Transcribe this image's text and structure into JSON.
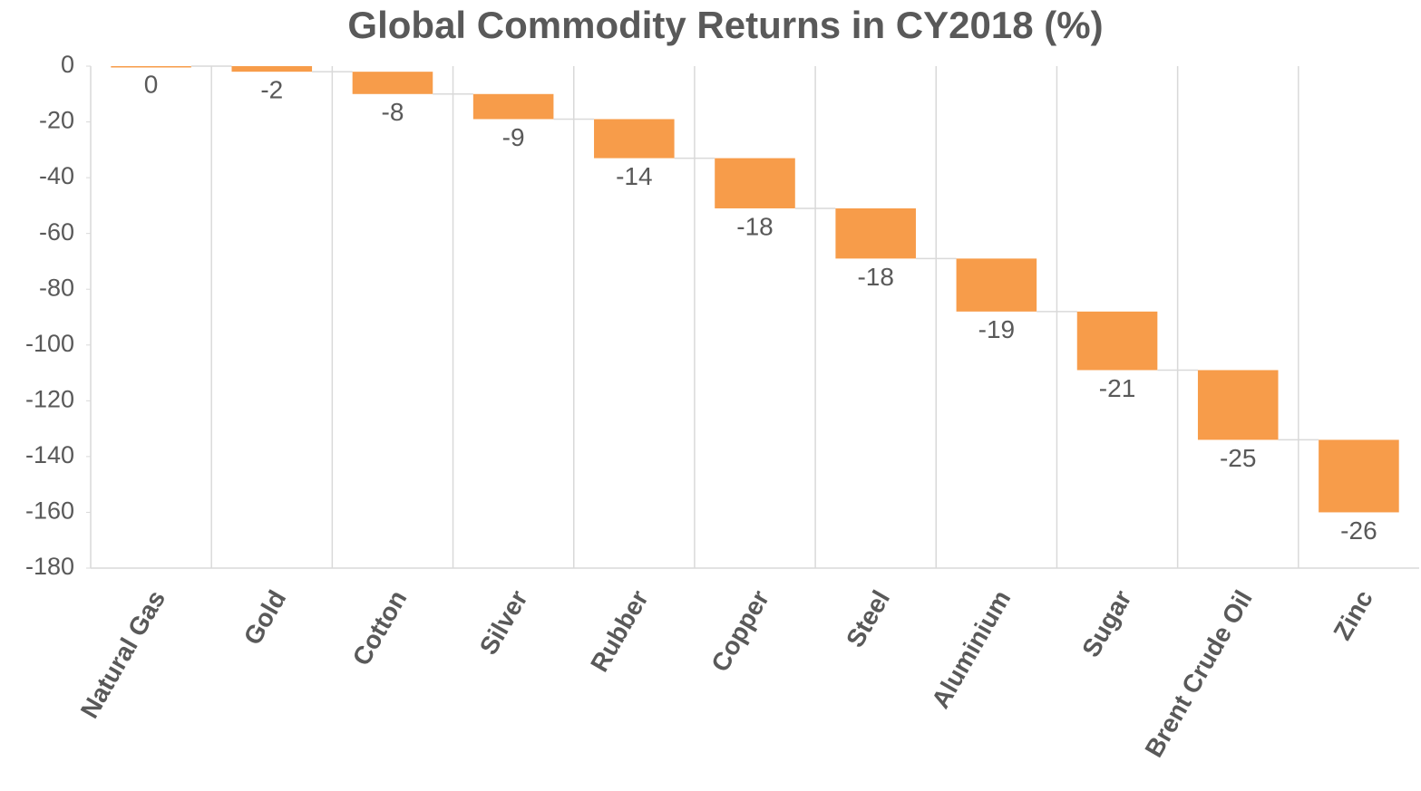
{
  "chart_data": {
    "type": "waterfall",
    "title": "Global Commodity Returns in CY2018 (%)",
    "categories": [
      "Natural Gas",
      "Gold",
      "Cotton",
      "Silver",
      "Rubber",
      "Copper",
      "Steel",
      "Aluminium",
      "Sugar",
      "Brent Crude Oil",
      "Zinc"
    ],
    "values": [
      0,
      -2,
      -8,
      -9,
      -14,
      -18,
      -18,
      -19,
      -21,
      -25,
      -26
    ],
    "color": "#f79c4a",
    "ylim": [
      -180,
      0
    ],
    "yticks": [
      0,
      -20,
      -40,
      -60,
      -80,
      -100,
      -120,
      -140,
      -160,
      -180
    ]
  }
}
